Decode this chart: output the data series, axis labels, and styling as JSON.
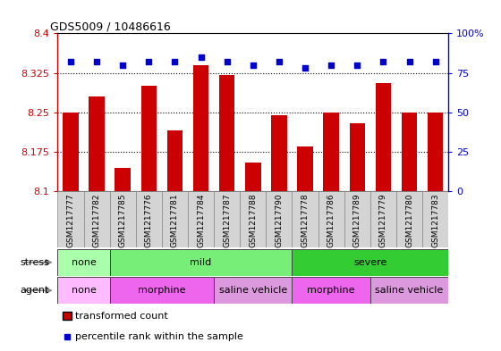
{
  "title": "GDS5009 / 10486616",
  "samples": [
    "GSM1217777",
    "GSM1217782",
    "GSM1217785",
    "GSM1217776",
    "GSM1217781",
    "GSM1217784",
    "GSM1217787",
    "GSM1217788",
    "GSM1217790",
    "GSM1217778",
    "GSM1217786",
    "GSM1217789",
    "GSM1217779",
    "GSM1217780",
    "GSM1217783"
  ],
  "transformed_counts": [
    8.25,
    8.28,
    8.145,
    8.3,
    8.215,
    8.34,
    8.32,
    8.155,
    8.245,
    8.185,
    8.25,
    8.23,
    8.305,
    8.25,
    8.25
  ],
  "percentile_ranks": [
    82,
    82,
    80,
    82,
    82,
    85,
    82,
    80,
    82,
    78,
    80,
    80,
    82,
    82,
    82
  ],
  "bar_color": "#cc0000",
  "dot_color": "#0000cc",
  "ylim_left": [
    8.1,
    8.4
  ],
  "ylim_right": [
    0,
    100
  ],
  "yticks_left": [
    8.1,
    8.175,
    8.25,
    8.325,
    8.4
  ],
  "yticks_right": [
    0,
    25,
    50,
    75,
    100
  ],
  "ytick_labels_right": [
    "0",
    "25",
    "50",
    "75",
    "100%"
  ],
  "stress_groups": [
    {
      "label": "none",
      "start": 0,
      "end": 2,
      "color": "#aaffaa"
    },
    {
      "label": "mild",
      "start": 2,
      "end": 9,
      "color": "#77ee77"
    },
    {
      "label": "severe",
      "start": 9,
      "end": 15,
      "color": "#33cc33"
    }
  ],
  "agent_groups": [
    {
      "label": "none",
      "start": 0,
      "end": 2,
      "color": "#ffbbff"
    },
    {
      "label": "morphine",
      "start": 2,
      "end": 6,
      "color": "#ee66ee"
    },
    {
      "label": "saline vehicle",
      "start": 6,
      "end": 9,
      "color": "#dd99dd"
    },
    {
      "label": "morphine",
      "start": 9,
      "end": 12,
      "color": "#ee66ee"
    },
    {
      "label": "saline vehicle",
      "start": 12,
      "end": 15,
      "color": "#dd99dd"
    }
  ],
  "axis_label_color_left": "#cc0000",
  "axis_label_color_right": "#0000cc"
}
